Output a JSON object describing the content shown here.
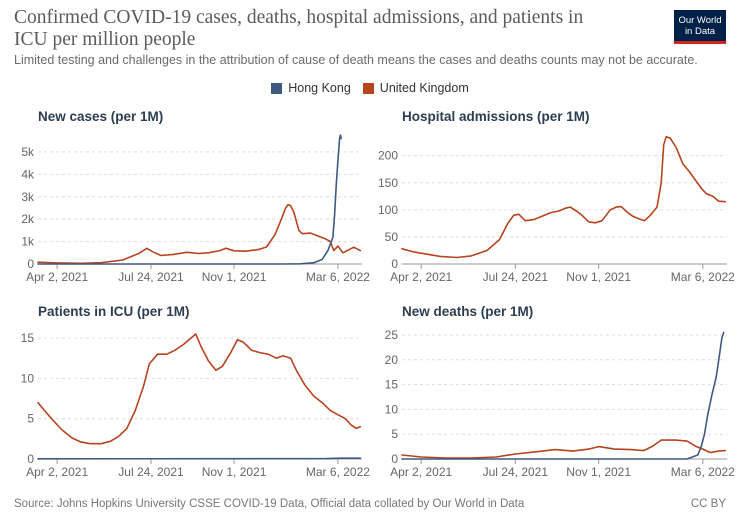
{
  "header": {
    "title": "Confirmed COVID-19 cases, deaths, hospital admissions, and patients in ICU per million people",
    "subtitle": "Limited testing and challenges in the attribution of cause of death means the cases and deaths counts may not be accurate.",
    "logo_line1": "Our World",
    "logo_line2": "in Data"
  },
  "colors": {
    "hong_kong": "#3d5a80",
    "united_kingdom": "#b5441f"
  },
  "legend": [
    {
      "name": "Hong Kong",
      "color": "#3d5a80"
    },
    {
      "name": "United Kingdom",
      "color": "#b5441f"
    }
  ],
  "footer": {
    "source": "Source: Johns Hopkins University CSSE COVID-19 Data, Official data collated by Our World in Data",
    "license": "CC BY"
  },
  "chart_data": [
    {
      "type": "line",
      "title": "New cases (per 1M)",
      "ylim": [
        0,
        5800
      ],
      "yticks": [
        0,
        1000,
        2000,
        3000,
        4000,
        5000
      ],
      "ytick_labels": [
        "0",
        "1k",
        "2k",
        "3k",
        "4k",
        "5k"
      ],
      "xticks": [
        "2021-04-02",
        "2021-07-24",
        "2021-11-01",
        "2022-03-06"
      ],
      "xtick_labels": [
        "Apr 2, 2021",
        "Jul 24, 2021",
        "Nov 1, 2021",
        "Mar 6, 2022"
      ],
      "xlim": [
        "2021-03-10",
        "2022-04-04"
      ],
      "grid": true,
      "series": [
        {
          "name": "United Kingdom",
          "points": [
            [
              "2021-03-10",
              80
            ],
            [
              "2021-04-02",
              50
            ],
            [
              "2021-05-01",
              30
            ],
            [
              "2021-05-25",
              60
            ],
            [
              "2021-06-20",
              180
            ],
            [
              "2021-07-10",
              480
            ],
            [
              "2021-07-19",
              700
            ],
            [
              "2021-07-26",
              550
            ],
            [
              "2021-08-05",
              380
            ],
            [
              "2021-08-20",
              430
            ],
            [
              "2021-09-05",
              520
            ],
            [
              "2021-09-20",
              470
            ],
            [
              "2021-10-01",
              500
            ],
            [
              "2021-10-15",
              600
            ],
            [
              "2021-10-22",
              700
            ],
            [
              "2021-11-01",
              590
            ],
            [
              "2021-11-15",
              570
            ],
            [
              "2021-12-01",
              650
            ],
            [
              "2021-12-10",
              760
            ],
            [
              "2021-12-20",
              1300
            ],
            [
              "2021-12-28",
              2000
            ],
            [
              "2022-01-02",
              2500
            ],
            [
              "2022-01-05",
              2650
            ],
            [
              "2022-01-08",
              2600
            ],
            [
              "2022-01-12",
              2300
            ],
            [
              "2022-01-18",
              1500
            ],
            [
              "2022-01-22",
              1350
            ],
            [
              "2022-02-01",
              1380
            ],
            [
              "2022-02-10",
              1250
            ],
            [
              "2022-02-20",
              1100
            ],
            [
              "2022-02-25",
              1000
            ],
            [
              "2022-03-01",
              600
            ],
            [
              "2022-03-06",
              800
            ],
            [
              "2022-03-12",
              500
            ],
            [
              "2022-03-20",
              650
            ],
            [
              "2022-03-25",
              750
            ],
            [
              "2022-04-02",
              600
            ]
          ]
        },
        {
          "name": "Hong Kong",
          "points": [
            [
              "2021-03-10",
              1
            ],
            [
              "2021-12-31",
              2
            ],
            [
              "2022-01-20",
              10
            ],
            [
              "2022-02-05",
              60
            ],
            [
              "2022-02-15",
              200
            ],
            [
              "2022-02-22",
              600
            ],
            [
              "2022-02-28",
              1200
            ],
            [
              "2022-03-02",
              2200
            ],
            [
              "2022-03-04",
              3500
            ],
            [
              "2022-03-06",
              4600
            ],
            [
              "2022-03-08",
              5600
            ],
            [
              "2022-03-09",
              5750
            ],
            [
              "2022-03-10",
              5600
            ]
          ]
        }
      ]
    },
    {
      "type": "line",
      "title": "Hospital admissions (per 1M)",
      "ylim": [
        0,
        240
      ],
      "yticks": [
        0,
        50,
        100,
        150,
        200
      ],
      "ytick_labels": [
        "0",
        "50",
        "100",
        "150",
        "200"
      ],
      "xticks": [
        "2021-04-02",
        "2021-07-24",
        "2021-11-01",
        "2022-03-06"
      ],
      "xtick_labels": [
        "Apr 2, 2021",
        "Jul 24, 2021",
        "Nov 1, 2021",
        "Mar 6, 2022"
      ],
      "xlim": [
        "2021-03-10",
        "2022-04-04"
      ],
      "grid": true,
      "series": [
        {
          "name": "United Kingdom",
          "points": [
            [
              "2021-03-10",
              28
            ],
            [
              "2021-03-25",
              22
            ],
            [
              "2021-04-10",
              18
            ],
            [
              "2021-04-25",
              14
            ],
            [
              "2021-05-15",
              12
            ],
            [
              "2021-06-01",
              15
            ],
            [
              "2021-06-20",
              25
            ],
            [
              "2021-07-05",
              45
            ],
            [
              "2021-07-15",
              75
            ],
            [
              "2021-07-22",
              90
            ],
            [
              "2021-07-28",
              92
            ],
            [
              "2021-08-05",
              80
            ],
            [
              "2021-08-15",
              82
            ],
            [
              "2021-08-25",
              88
            ],
            [
              "2021-09-05",
              95
            ],
            [
              "2021-09-15",
              98
            ],
            [
              "2021-09-22",
              103
            ],
            [
              "2021-09-28",
              105
            ],
            [
              "2021-10-05",
              98
            ],
            [
              "2021-10-12",
              90
            ],
            [
              "2021-10-20",
              78
            ],
            [
              "2021-10-28",
              76
            ],
            [
              "2021-11-05",
              80
            ],
            [
              "2021-11-15",
              100
            ],
            [
              "2021-11-22",
              105
            ],
            [
              "2021-11-28",
              106
            ],
            [
              "2021-12-05",
              96
            ],
            [
              "2021-12-12",
              88
            ],
            [
              "2021-12-20",
              83
            ],
            [
              "2021-12-26",
              80
            ],
            [
              "2022-01-02",
              90
            ],
            [
              "2022-01-10",
              105
            ],
            [
              "2022-01-15",
              150
            ],
            [
              "2022-01-18",
              220
            ],
            [
              "2022-01-21",
              235
            ],
            [
              "2022-01-26",
              232
            ],
            [
              "2022-02-02",
              215
            ],
            [
              "2022-02-10",
              185
            ],
            [
              "2022-02-18",
              170
            ],
            [
              "2022-02-25",
              155
            ],
            [
              "2022-03-04",
              140
            ],
            [
              "2022-03-10",
              130
            ],
            [
              "2022-03-18",
              125
            ],
            [
              "2022-03-25",
              116
            ],
            [
              "2022-04-02",
              115
            ]
          ]
        }
      ]
    },
    {
      "type": "line",
      "title": "Patients in ICU (per 1M)",
      "ylim": [
        0,
        16
      ],
      "yticks": [
        0,
        5,
        10,
        15
      ],
      "ytick_labels": [
        "0",
        "5",
        "10",
        "15"
      ],
      "xticks": [
        "2021-04-02",
        "2021-07-24",
        "2021-11-01",
        "2022-03-06"
      ],
      "xtick_labels": [
        "Apr 2, 2021",
        "Jul 24, 2021",
        "Nov 1, 2021",
        "Mar 6, 2022"
      ],
      "xlim": [
        "2021-03-10",
        "2022-04-04"
      ],
      "grid": true,
      "series": [
        {
          "name": "United Kingdom",
          "points": [
            [
              "2021-03-10",
              7.0
            ],
            [
              "2021-03-18",
              6.0
            ],
            [
              "2021-03-28",
              4.8
            ],
            [
              "2021-04-08",
              3.6
            ],
            [
              "2021-04-20",
              2.6
            ],
            [
              "2021-05-01",
              2.1
            ],
            [
              "2021-05-12",
              1.9
            ],
            [
              "2021-05-25",
              1.9
            ],
            [
              "2021-06-05",
              2.2
            ],
            [
              "2021-06-15",
              2.8
            ],
            [
              "2021-06-25",
              3.8
            ],
            [
              "2021-07-05",
              6.0
            ],
            [
              "2021-07-15",
              9.0
            ],
            [
              "2021-07-22",
              11.8
            ],
            [
              "2021-08-01",
              13.0
            ],
            [
              "2021-08-12",
              13.0
            ],
            [
              "2021-08-22",
              13.5
            ],
            [
              "2021-09-01",
              14.2
            ],
            [
              "2021-09-10",
              15.0
            ],
            [
              "2021-09-16",
              15.5
            ],
            [
              "2021-09-22",
              14.0
            ],
            [
              "2021-10-01",
              12.2
            ],
            [
              "2021-10-10",
              11.0
            ],
            [
              "2021-10-18",
              11.5
            ],
            [
              "2021-10-28",
              13.2
            ],
            [
              "2021-11-05",
              14.8
            ],
            [
              "2021-11-12",
              14.5
            ],
            [
              "2021-11-22",
              13.5
            ],
            [
              "2021-12-02",
              13.2
            ],
            [
              "2021-12-12",
              13.0
            ],
            [
              "2021-12-22",
              12.5
            ],
            [
              "2021-12-30",
              12.8
            ],
            [
              "2022-01-08",
              12.5
            ],
            [
              "2022-01-15",
              11.0
            ],
            [
              "2022-01-25",
              9.2
            ],
            [
              "2022-02-05",
              7.8
            ],
            [
              "2022-02-15",
              7.0
            ],
            [
              "2022-02-25",
              6.0
            ],
            [
              "2022-03-06",
              5.5
            ],
            [
              "2022-03-15",
              5.0
            ],
            [
              "2022-03-22",
              4.2
            ],
            [
              "2022-03-28",
              3.8
            ],
            [
              "2022-04-02",
              4.0
            ]
          ]
        },
        {
          "name": "Hong Kong",
          "points": [
            [
              "2021-03-10",
              0.02
            ],
            [
              "2022-02-20",
              0.05
            ],
            [
              "2022-03-10",
              0.1
            ],
            [
              "2022-04-02",
              0.1
            ]
          ]
        }
      ]
    },
    {
      "type": "line",
      "title": "New deaths (per 1M)",
      "ylim": [
        0,
        26
      ],
      "yticks": [
        0,
        5,
        10,
        15,
        20,
        25
      ],
      "ytick_labels": [
        "0",
        "5",
        "10",
        "15",
        "20",
        "25"
      ],
      "xticks": [
        "2021-04-02",
        "2021-07-24",
        "2021-11-01",
        "2022-03-06"
      ],
      "xtick_labels": [
        "Apr 2, 2021",
        "Jul 24, 2021",
        "Nov 1, 2021",
        "Mar 6, 2022"
      ],
      "xlim": [
        "2021-03-10",
        "2022-04-04"
      ],
      "grid": true,
      "series": [
        {
          "name": "United Kingdom",
          "points": [
            [
              "2021-03-10",
              0.8
            ],
            [
              "2021-04-02",
              0.4
            ],
            [
              "2021-05-01",
              0.2
            ],
            [
              "2021-06-01",
              0.2
            ],
            [
              "2021-07-01",
              0.4
            ],
            [
              "2021-07-24",
              1.0
            ],
            [
              "2021-08-15",
              1.4
            ],
            [
              "2021-09-10",
              1.9
            ],
            [
              "2021-10-01",
              1.6
            ],
            [
              "2021-10-20",
              2.0
            ],
            [
              "2021-11-01",
              2.5
            ],
            [
              "2021-11-20",
              2.0
            ],
            [
              "2021-12-10",
              1.9
            ],
            [
              "2021-12-25",
              1.7
            ],
            [
              "2022-01-05",
              2.6
            ],
            [
              "2022-01-15",
              3.8
            ],
            [
              "2022-02-01",
              3.8
            ],
            [
              "2022-02-15",
              3.6
            ],
            [
              "2022-02-25",
              2.6
            ],
            [
              "2022-03-06",
              2.0
            ],
            [
              "2022-03-15",
              1.3
            ],
            [
              "2022-03-25",
              1.6
            ],
            [
              "2022-04-02",
              1.7
            ]
          ]
        },
        {
          "name": "Hong Kong",
          "points": [
            [
              "2021-03-10",
              0
            ],
            [
              "2022-02-15",
              0
            ],
            [
              "2022-02-28",
              0.8
            ],
            [
              "2022-03-04",
              2.5
            ],
            [
              "2022-03-08",
              5
            ],
            [
              "2022-03-12",
              9
            ],
            [
              "2022-03-17",
              13
            ],
            [
              "2022-03-22",
              16.5
            ],
            [
              "2022-03-26",
              21
            ],
            [
              "2022-03-29",
              24.5
            ],
            [
              "2022-03-31",
              25.5
            ]
          ]
        }
      ]
    }
  ]
}
